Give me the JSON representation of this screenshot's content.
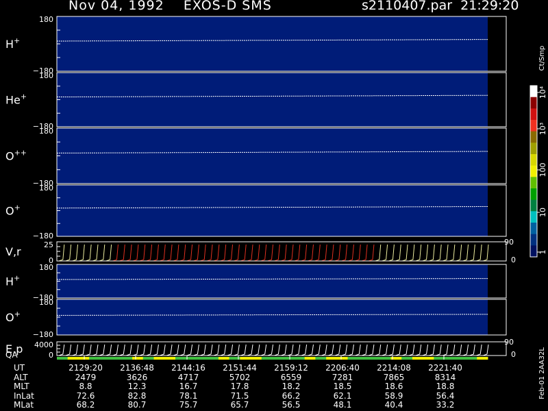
{
  "header": {
    "title_left": "Nov 04, 1992    EXOS-D SMS",
    "title_right": "s2110407.par  21:29:20"
  },
  "colorbar": {
    "unit": "Ct/Smp",
    "ticks": [
      "10⁴",
      "10³",
      "100",
      "10",
      "1"
    ],
    "colors": [
      "#ffffff",
      "#8b0000",
      "#d01010",
      "#f03020",
      "#8a6a00",
      "#a0a000",
      "#d8d800",
      "#f0f000",
      "#60c000",
      "#00a000",
      "#008040",
      "#00c0c0",
      "#0060a0",
      "#003080",
      "#001060"
    ]
  },
  "panels": [
    {
      "label": "H",
      "sup": "+",
      "ymax": "180",
      "ymin": "−180"
    },
    {
      "label": "He",
      "sup": "+",
      "ymax": "180",
      "ymin": "−180"
    },
    {
      "label": "O",
      "sup": "++",
      "ymax": "180",
      "ymin": "−180"
    },
    {
      "label": "O",
      "sup": "+",
      "ymax": "180",
      "ymin": "−180"
    },
    {
      "label": "V,r",
      "sup": "",
      "ymax": "25",
      "ymin": "0",
      "right_max": "90",
      "right_min": "0"
    },
    {
      "label": "H",
      "sup": "+",
      "ymax": "180",
      "ymin": "−180"
    },
    {
      "label": "O",
      "sup": "+",
      "ymax": "180",
      "ymin": "−180"
    },
    {
      "label": "E,p",
      "sup": "",
      "ymax": "4000",
      "ymin": "0",
      "right_max": "90",
      "right_min": "0"
    }
  ],
  "qa_label": "QA",
  "side_label": "Feb-01 2AA32L",
  "table": {
    "rows": [
      {
        "name": "UT",
        "values": [
          "2129:20",
          "2136:48",
          "2144:16",
          "2151:44",
          "2159:12",
          "2206:40",
          "2214:08",
          "2221:40"
        ]
      },
      {
        "name": "ALT",
        "values": [
          "2479",
          "3626",
          "4717",
          "5702",
          "6559",
          "7281",
          "7865",
          "8314"
        ]
      },
      {
        "name": "MLT",
        "values": [
          "8.8",
          "12.3",
          "16.7",
          "17.8",
          "18.2",
          "18.5",
          "18.6",
          "18.8"
        ]
      },
      {
        "name": "InLat",
        "values": [
          "72.6",
          "82.8",
          "78.1",
          "71.5",
          "66.2",
          "62.1",
          "58.9",
          "56.4"
        ]
      },
      {
        "name": "MLat",
        "values": [
          "68.2",
          "80.7",
          "75.7",
          "65.7",
          "56.5",
          "48.1",
          "40.4",
          "33.2"
        ]
      }
    ]
  },
  "chart_data": {
    "type": "heatmap",
    "title": "Nov 04, 1992    EXOS-D SMS",
    "xlabel": "UT",
    "x_ticks": [
      "2129:20",
      "2136:48",
      "2144:16",
      "2151:44",
      "2159:12",
      "2206:40",
      "2214:08",
      "2221:40"
    ],
    "colorbar_label": "Ct/Smp",
    "colorbar_ticks": [
      "1",
      "10",
      "100",
      "10³",
      "10⁴"
    ],
    "panels": [
      {
        "name": "H+",
        "ylim": [
          -180,
          180
        ]
      },
      {
        "name": "He+",
        "ylim": [
          -180,
          180
        ]
      },
      {
        "name": "O++",
        "ylim": [
          -180,
          180
        ]
      },
      {
        "name": "O+",
        "ylim": [
          -180,
          180
        ]
      },
      {
        "name": "V,r",
        "ylim": [
          0,
          25
        ],
        "y2lim": [
          0,
          90
        ]
      },
      {
        "name": "H+",
        "ylim": [
          -180,
          180
        ]
      },
      {
        "name": "O+",
        "ylim": [
          -180,
          180
        ]
      },
      {
        "name": "E,p",
        "ylim": [
          0,
          4000
        ],
        "y2lim": [
          0,
          90
        ]
      }
    ]
  }
}
